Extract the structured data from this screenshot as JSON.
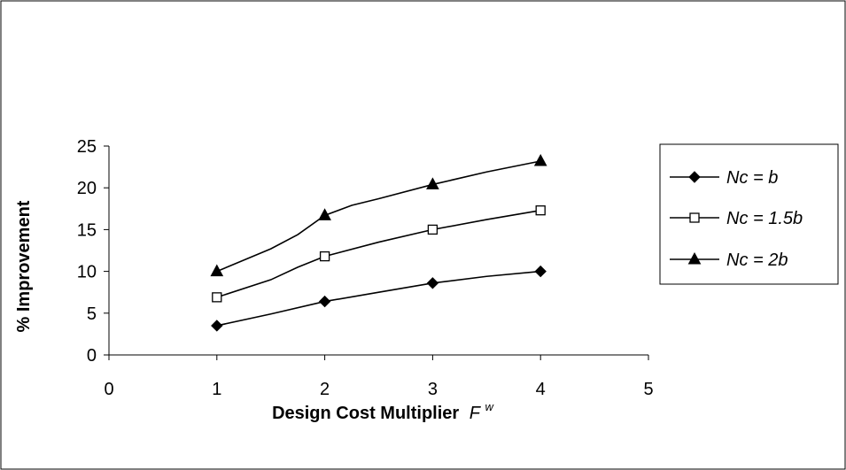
{
  "chart_data": {
    "type": "line",
    "xlabel": "Design Cost Multiplier",
    "xlabel_symbol": "F",
    "xlabel_superscript": "w",
    "ylabel": "% Improvement",
    "xlim": [
      0,
      5
    ],
    "ylim": [
      0,
      25
    ],
    "x_ticks": [
      "0",
      "1",
      "2",
      "3",
      "4",
      "5"
    ],
    "y_ticks": [
      "0",
      "5",
      "10",
      "15",
      "20",
      "25"
    ],
    "grid": false,
    "legend_position": "right",
    "series": [
      {
        "name": "Nc = b",
        "marker": "diamond",
        "x": [
          1,
          2,
          3,
          4
        ],
        "y": [
          3.5,
          6.4,
          8.6,
          10.0
        ],
        "curve": [
          [
            1,
            3.5
          ],
          [
            1.5,
            4.9
          ],
          [
            2,
            6.4
          ],
          [
            2.5,
            7.5
          ],
          [
            3,
            8.6
          ],
          [
            3.5,
            9.4
          ],
          [
            4,
            10.0
          ]
        ]
      },
      {
        "name": "Nc = 1.5b",
        "marker": "square-open",
        "x": [
          1,
          2,
          3,
          4
        ],
        "y": [
          6.9,
          11.8,
          15.0,
          17.3
        ],
        "curve": [
          [
            1,
            6.9
          ],
          [
            1.5,
            9.0
          ],
          [
            1.75,
            10.5
          ],
          [
            2,
            11.8
          ],
          [
            2.5,
            13.5
          ],
          [
            3,
            15.0
          ],
          [
            3.5,
            16.2
          ],
          [
            4,
            17.3
          ]
        ]
      },
      {
        "name": "Nc = 2b",
        "marker": "triangle",
        "x": [
          1,
          2,
          3,
          4
        ],
        "y": [
          10.0,
          16.7,
          20.4,
          23.2
        ],
        "curve": [
          [
            1,
            10.0
          ],
          [
            1.5,
            12.7
          ],
          [
            1.75,
            14.4
          ],
          [
            2,
            16.7
          ],
          [
            2.25,
            17.9
          ],
          [
            2.5,
            18.7
          ],
          [
            3,
            20.4
          ],
          [
            3.5,
            21.9
          ],
          [
            4,
            23.2
          ]
        ]
      }
    ]
  }
}
